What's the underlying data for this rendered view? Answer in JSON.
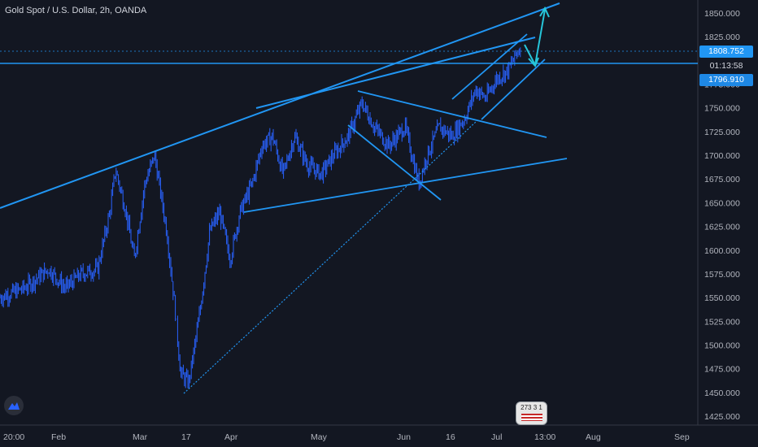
{
  "header": {
    "title": "Gold Spot / U.S. Dollar, 2h, OANDA"
  },
  "price_axis": {
    "ticks": [
      "1850.000",
      "1825.000",
      "1808.752",
      "1775.000",
      "1750.000",
      "1725.000",
      "1700.000",
      "1675.000",
      "1650.000",
      "1625.000",
      "1600.000",
      "1575.000",
      "1550.000",
      "1525.000",
      "1500.000",
      "1475.000",
      "1450.000",
      "1425.000"
    ]
  },
  "price_tags": {
    "current_price": "1808.752",
    "countdown": "01:13:58",
    "line_price": "1796.910"
  },
  "time_axis": {
    "labels": [
      "20:00",
      "Feb",
      "Mar",
      "17",
      "Apr",
      "May",
      "Jun",
      "16",
      "Jul",
      "13:00",
      "Aug",
      "Sep"
    ]
  },
  "badge": {
    "text": "273 3 1"
  },
  "colors": {
    "background": "#131722",
    "candles": "#2962ff",
    "drawings": "#2196f3",
    "arrows": "#26c6da",
    "current_price_tag": "#2196f3",
    "line_price_tag": "#1e88e5"
  },
  "icons": {
    "logo": "tradingview-logo-icon"
  },
  "chart_data": {
    "type": "line",
    "title": "Gold Spot / U.S. Dollar, 2h, OANDA",
    "xlabel": "",
    "ylabel": "",
    "ylim": [
      1415,
      1870
    ],
    "grid": false,
    "x_ticks": [
      "20:00",
      "Feb",
      "Mar",
      "17",
      "Apr",
      "May",
      "Jun",
      "16",
      "Jul",
      "13:00",
      "Aug",
      "Sep"
    ],
    "series": [
      {
        "x": [
          "20:00",
          "Feb",
          "Mar",
          "17",
          "Apr",
          "May",
          "Jun",
          "16",
          "Jul"
        ],
        "values": [
          1550,
          1575,
          1670,
          1470,
          1620,
          1710,
          1700,
          1735,
          1808.752
        ]
      }
    ],
    "annotations": {
      "current_price": 1808.752,
      "horizontal_line": 1796.91,
      "countdown": "01:13:58"
    }
  }
}
